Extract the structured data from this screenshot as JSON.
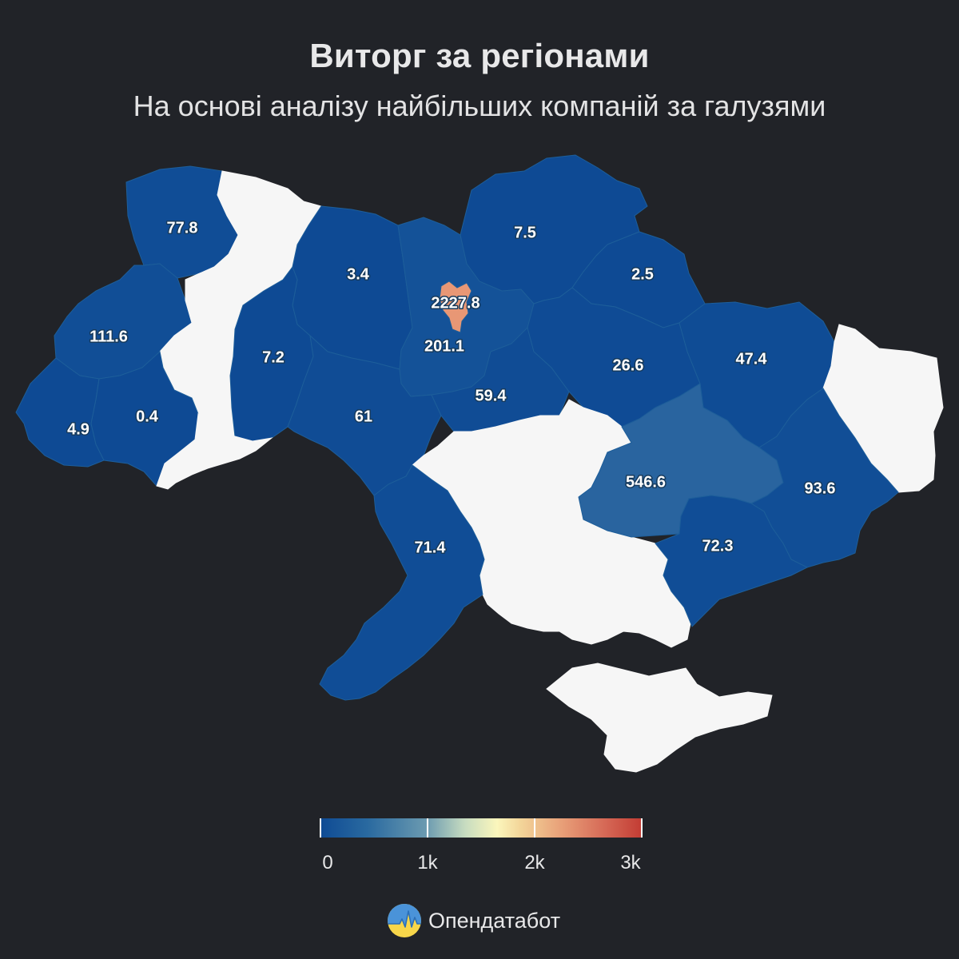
{
  "title": "Виторг за регіонами",
  "subtitle": "На основі аналізу найбільших компаній за галузями",
  "brand": {
    "name": "Опендатабот",
    "logo_icon": "opendatabot-logo-icon"
  },
  "colors": {
    "background": "#212328",
    "no_data": "#f6f6f6",
    "scale_low": "#0e4a94",
    "scale_mid": "#fbf6bc",
    "scale_high": "#c23b33"
  },
  "legend": {
    "min": 0,
    "max": 3000,
    "ticks": [
      {
        "value": 0,
        "label": "0"
      },
      {
        "value": 1000,
        "label": "1k"
      },
      {
        "value": 2000,
        "label": "2k"
      },
      {
        "value": 3000,
        "label": "3k"
      }
    ]
  },
  "regions": [
    {
      "id": "volyn",
      "value": "77.8"
    },
    {
      "id": "rivne",
      "value": null
    },
    {
      "id": "zhytomyr",
      "value": "3.4"
    },
    {
      "id": "kyiv-oblast",
      "value": "201.1"
    },
    {
      "id": "kyiv-city",
      "value": "2227.8"
    },
    {
      "id": "chernihiv",
      "value": "7.5"
    },
    {
      "id": "sumy",
      "value": "2.5"
    },
    {
      "id": "lviv",
      "value": "111.6"
    },
    {
      "id": "ternopil",
      "value": null
    },
    {
      "id": "khmelnytskyi",
      "value": "7.2"
    },
    {
      "id": "vinnytsia",
      "value": "61"
    },
    {
      "id": "cherkasy",
      "value": "59.4"
    },
    {
      "id": "poltava",
      "value": "26.6"
    },
    {
      "id": "kharkiv",
      "value": "47.4"
    },
    {
      "id": "luhansk",
      "value": null
    },
    {
      "id": "zakarpattia",
      "value": "4.9"
    },
    {
      "id": "ivano-frankivsk",
      "value": "0.4"
    },
    {
      "id": "chernivtsi",
      "value": null
    },
    {
      "id": "kirovohrad",
      "value": null
    },
    {
      "id": "dnipropetrovsk",
      "value": "546.6"
    },
    {
      "id": "donetsk",
      "value": "93.6"
    },
    {
      "id": "mykolaiv",
      "value": null
    },
    {
      "id": "odesa",
      "value": "71.4"
    },
    {
      "id": "zaporizhzhia",
      "value": "72.3"
    },
    {
      "id": "kherson",
      "value": null
    },
    {
      "id": "crimea",
      "value": null
    }
  ]
}
